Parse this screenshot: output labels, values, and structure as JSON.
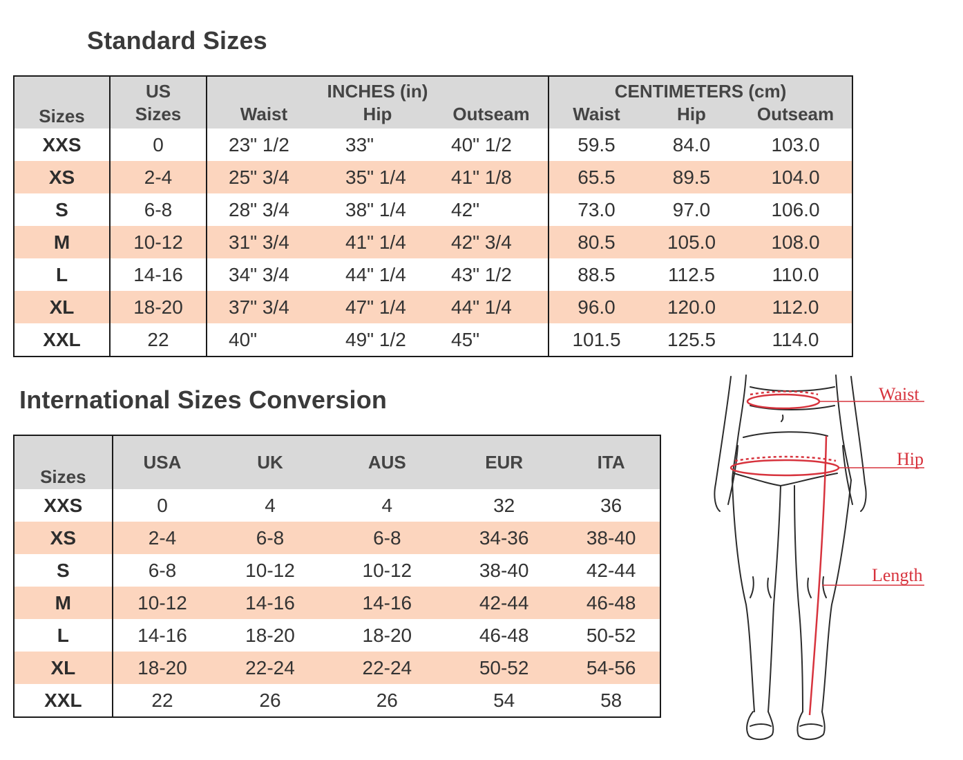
{
  "standard": {
    "title": "Standard Sizes",
    "head": {
      "sizes": "Sizes",
      "us_top": "US",
      "us_bottom": "Sizes",
      "inches": "INCHES (in)",
      "cm": "CENTIMETERS (cm)",
      "waist": "Waist",
      "hip": "Hip",
      "outseam": "Outseam"
    },
    "rows": [
      {
        "size": "XXS",
        "us": "0",
        "in_waist": "23\" 1/2",
        "in_hip": "33\"",
        "in_outseam": "40\" 1/2",
        "cm_waist": "59.5",
        "cm_hip": "84.0",
        "cm_outseam": "103.0"
      },
      {
        "size": "XS",
        "us": "2-4",
        "in_waist": "25\" 3/4",
        "in_hip": "35\" 1/4",
        "in_outseam": "41\" 1/8",
        "cm_waist": "65.5",
        "cm_hip": "89.5",
        "cm_outseam": "104.0"
      },
      {
        "size": "S",
        "us": "6-8",
        "in_waist": "28\" 3/4",
        "in_hip": "38\" 1/4",
        "in_outseam": "42\"",
        "cm_waist": "73.0",
        "cm_hip": "97.0",
        "cm_outseam": "106.0"
      },
      {
        "size": "M",
        "us": "10-12",
        "in_waist": "31\" 3/4",
        "in_hip": "41\" 1/4",
        "in_outseam": "42\" 3/4",
        "cm_waist": "80.5",
        "cm_hip": "105.0",
        "cm_outseam": "108.0"
      },
      {
        "size": "L",
        "us": "14-16",
        "in_waist": "34\" 3/4",
        "in_hip": "44\" 1/4",
        "in_outseam": "43\" 1/2",
        "cm_waist": "88.5",
        "cm_hip": "112.5",
        "cm_outseam": "110.0"
      },
      {
        "size": "XL",
        "us": "18-20",
        "in_waist": "37\" 3/4",
        "in_hip": "47\" 1/4",
        "in_outseam": "44\" 1/4",
        "cm_waist": "96.0",
        "cm_hip": "120.0",
        "cm_outseam": "112.0"
      },
      {
        "size": "XXL",
        "us": "22",
        "in_waist": "40\"",
        "in_hip": "49\" 1/2",
        "in_outseam": "45\"",
        "cm_waist": "101.5",
        "cm_hip": "125.5",
        "cm_outseam": "114.0"
      }
    ]
  },
  "international": {
    "title": "International Sizes Conversion",
    "head": {
      "sizes": "Sizes",
      "usa": "USA",
      "uk": "UK",
      "aus": "AUS",
      "eur": "EUR",
      "ita": "ITA"
    },
    "rows": [
      {
        "size": "XXS",
        "usa": "0",
        "uk": "4",
        "aus": "4",
        "eur": "32",
        "ita": "36"
      },
      {
        "size": "XS",
        "usa": "2-4",
        "uk": "6-8",
        "aus": "6-8",
        "eur": "34-36",
        "ita": "38-40"
      },
      {
        "size": "S",
        "usa": "6-8",
        "uk": "10-12",
        "aus": "10-12",
        "eur": "38-40",
        "ita": "42-44"
      },
      {
        "size": "M",
        "usa": "10-12",
        "uk": "14-16",
        "aus": "14-16",
        "eur": "42-44",
        "ita": "46-48"
      },
      {
        "size": "L",
        "usa": "14-16",
        "uk": "18-20",
        "aus": "18-20",
        "eur": "46-48",
        "ita": "50-52"
      },
      {
        "size": "XL",
        "usa": "18-20",
        "uk": "22-24",
        "aus": "22-24",
        "eur": "50-52",
        "ita": "54-56"
      },
      {
        "size": "XXL",
        "usa": "22",
        "uk": "26",
        "aus": "26",
        "eur": "54",
        "ita": "58"
      }
    ]
  },
  "figure": {
    "waist_label": "Waist",
    "hip_label": "Hip",
    "length_label": "Length"
  },
  "colors": {
    "header_bg": "#d9d9d9",
    "row_shade": "#fcd5be",
    "measure_red": "#d7333d"
  }
}
